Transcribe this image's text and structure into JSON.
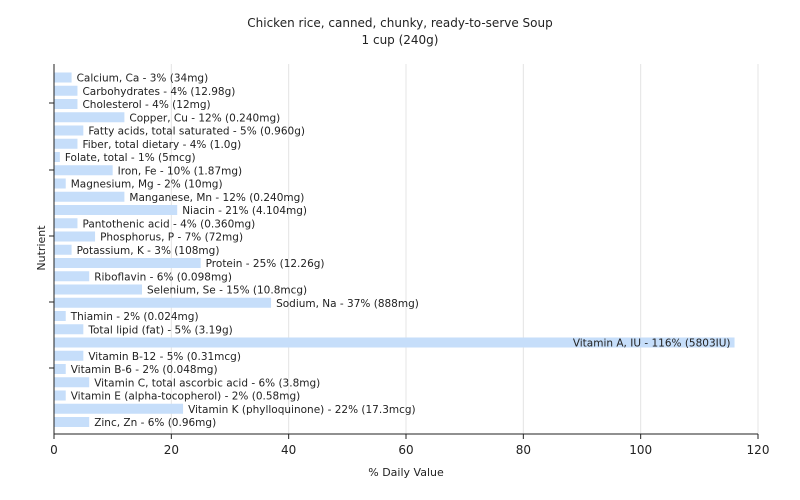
{
  "chart_data": {
    "type": "bar",
    "orientation": "horizontal",
    "title": "Chicken rice, canned, chunky, ready-to-serve Soup",
    "subtitle": "1 cup (240g)",
    "xlabel": "% Daily Value",
    "ylabel": "Nutrient",
    "xlim": [
      0,
      120
    ],
    "xticks": [
      "0",
      "20",
      "40",
      "60",
      "80",
      "100",
      "120"
    ],
    "grid": true,
    "categories": [
      "Calcium, Ca",
      "Carbohydrates",
      "Cholesterol",
      "Copper, Cu",
      "Fatty acids, total saturated",
      "Fiber, total dietary",
      "Folate, total",
      "Iron, Fe",
      "Magnesium, Mg",
      "Manganese, Mn",
      "Niacin",
      "Pantothenic acid",
      "Phosphorus, P",
      "Potassium, K",
      "Protein",
      "Riboflavin",
      "Selenium, Se",
      "Sodium, Na",
      "Thiamin",
      "Total lipid (fat)",
      "Vitamin A, IU",
      "Vitamin B-12",
      "Vitamin B-6",
      "Vitamin C, total ascorbic acid",
      "Vitamin E (alpha-tocopherol)",
      "Vitamin K (phylloquinone)",
      "Zinc, Zn"
    ],
    "values": [
      3,
      4,
      4,
      12,
      5,
      4,
      1,
      10,
      2,
      12,
      21,
      4,
      7,
      3,
      25,
      6,
      15,
      37,
      2,
      5,
      116,
      5,
      2,
      6,
      2,
      22,
      6
    ],
    "labels": [
      "Calcium, Ca - 3% (34mg)",
      "Carbohydrates - 4% (12.98g)",
      "Cholesterol - 4% (12mg)",
      "Copper, Cu - 12% (0.240mg)",
      "Fatty acids, total saturated - 5% (0.960g)",
      "Fiber, total dietary - 4% (1.0g)",
      "Folate, total - 1% (5mcg)",
      "Iron, Fe - 10% (1.87mg)",
      "Magnesium, Mg - 2% (10mg)",
      "Manganese, Mn - 12% (0.240mg)",
      "Niacin - 21% (4.104mg)",
      "Pantothenic acid - 4% (0.360mg)",
      "Phosphorus, P - 7% (72mg)",
      "Potassium, K - 3% (108mg)",
      "Protein - 25% (12.26g)",
      "Riboflavin - 6% (0.098mg)",
      "Selenium, Se - 15% (10.8mcg)",
      "Sodium, Na - 37% (888mg)",
      "Thiamin - 2% (0.024mg)",
      "Total lipid (fat) - 5% (3.19g)",
      "Vitamin A, IU - 116% (5803IU)",
      "Vitamin B-12 - 5% (0.31mcg)",
      "Vitamin B-6 - 2% (0.048mg)",
      "Vitamin C, total ascorbic acid - 6% (3.8mg)",
      "Vitamin E (alpha-tocopherol) - 2% (0.58mg)",
      "Vitamin K (phylloquinone) - 22% (17.3mcg)",
      "Zinc, Zn - 6% (0.96mg)"
    ],
    "bar_color": "#c6defa"
  }
}
